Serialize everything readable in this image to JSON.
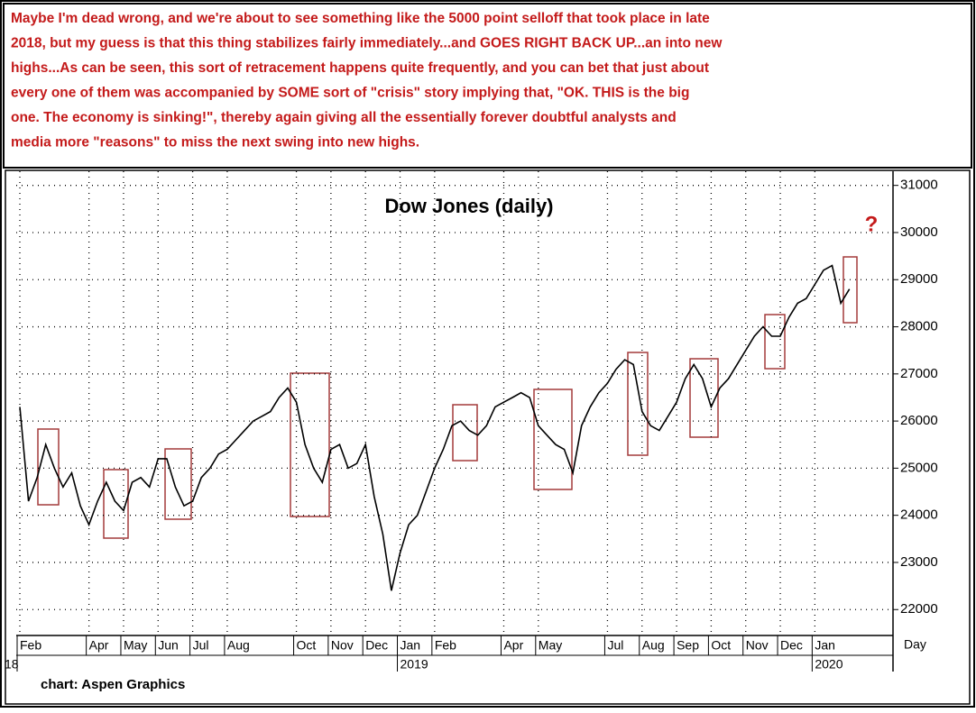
{
  "header": {
    "lines": [
      "Maybe I'm dead wrong, and we're about to see something like the 5000 point selloff that took place in late",
      "2018, but my guess is that this thing stabilizes fairly immediately...and GOES RIGHT BACK UP...an into new",
      "highs...As can be seen, this sort of retracement happens quite frequently, and you can bet that just about",
      "every one of them was accompanied by SOME sort of \"crisis\" story implying that, \"OK. THIS is the big",
      "one. The economy is sinking!\",  thereby again giving all the essentially forever doubtful analysts  and",
      "media more \"reasons\" to miss the next swing into new highs."
    ]
  },
  "chart_data": {
    "type": "line",
    "title": "Dow Jones (daily)",
    "annotation": "?",
    "x_unit": "Day",
    "source": "chart: Aspen Graphics",
    "color": "#000000",
    "box_color": "#a33a3a",
    "grid": true,
    "categories": [
      "Feb",
      null,
      null,
      null,
      null,
      null,
      null,
      null,
      "Apr",
      null,
      null,
      null,
      "May",
      null,
      null,
      null,
      "Jun",
      null,
      null,
      null,
      "Jul",
      null,
      null,
      null,
      "Aug",
      null,
      null,
      null,
      null,
      null,
      null,
      null,
      "Oct",
      null,
      null,
      null,
      "Nov",
      null,
      null,
      null,
      "Dec",
      null,
      null,
      null,
      "Jan",
      null,
      null,
      null,
      "Feb",
      null,
      null,
      null,
      null,
      null,
      null,
      null,
      "Apr",
      null,
      null,
      null,
      "May",
      null,
      null,
      null,
      null,
      null,
      null,
      null,
      "Jul",
      null,
      null,
      null,
      "Aug",
      null,
      null,
      null,
      "Sep",
      null,
      null,
      null,
      "Oct",
      null,
      null,
      null,
      "Nov",
      null,
      null,
      null,
      "Dec",
      null,
      null,
      null,
      "Jan",
      null,
      null,
      null,
      null
    ],
    "years": [
      "18",
      null,
      null,
      null,
      null,
      null,
      null,
      null,
      null,
      null,
      null,
      null,
      null,
      null,
      null,
      null,
      null,
      null,
      null,
      null,
      null,
      null,
      null,
      null,
      null,
      null,
      null,
      null,
      null,
      null,
      null,
      null,
      null,
      null,
      null,
      null,
      null,
      null,
      null,
      null,
      null,
      null,
      null,
      null,
      "2019",
      null,
      null,
      null,
      null,
      null,
      null,
      null,
      null,
      null,
      null,
      null,
      null,
      null,
      null,
      null,
      null,
      null,
      null,
      null,
      null,
      null,
      null,
      null,
      null,
      null,
      null,
      null,
      null,
      null,
      null,
      null,
      null,
      null,
      null,
      null,
      null,
      null,
      null,
      null,
      null,
      null,
      null,
      null,
      null,
      null,
      null,
      null,
      "2020",
      null,
      null,
      null,
      null
    ],
    "values": [
      26300,
      24300,
      24800,
      25500,
      25000,
      24600,
      24900,
      24200,
      23800,
      24300,
      24700,
      24300,
      24100,
      24700,
      24800,
      24600,
      25200,
      25200,
      24600,
      24200,
      24300,
      24800,
      25000,
      25300,
      25400,
      25600,
      25800,
      26000,
      26100,
      26200,
      26500,
      26700,
      26400,
      25500,
      25000,
      24700,
      25400,
      25500,
      25000,
      25100,
      25500,
      24400,
      23600,
      22400,
      23200,
      23800,
      24000,
      24500,
      25000,
      25400,
      25900,
      26000,
      25800,
      25700,
      25900,
      26300,
      26400,
      26500,
      26600,
      26500,
      25900,
      25700,
      25500,
      25400,
      24900,
      25900,
      26300,
      26600,
      26800,
      27100,
      27300,
      27200,
      26200,
      25900,
      25800,
      26100,
      26400,
      26900,
      27200,
      26900,
      26300,
      26700,
      26900,
      27200,
      27500,
      27800,
      28000,
      27800,
      27800,
      28200,
      28500,
      28600,
      28900,
      29200,
      29300,
      28500,
      28800
    ],
    "ylim": [
      21450,
      31300
    ],
    "yticks": [
      22000,
      23000,
      24000,
      25000,
      26000,
      27000,
      28000,
      29000,
      30000,
      31000
    ]
  }
}
